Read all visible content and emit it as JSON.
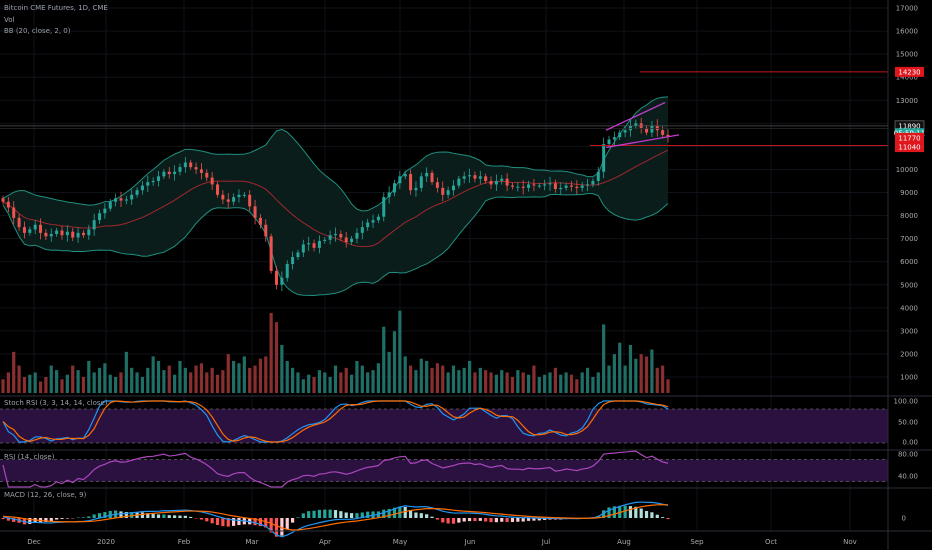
{
  "header": {
    "title": "Bitcoin CME Futures, 1D, CME",
    "volume_label": "Vol",
    "bb_label": "BB (20, close, 2, 0)"
  },
  "panes": {
    "stoch_label": "Stoch RSI (3, 3, 14, 14, close)",
    "rsi_label": "RSI (14, close)",
    "macd_label": "MACD (12, 26, close, 9)"
  },
  "price_axis": {
    "ticks": [
      "17000",
      "16000",
      "15000",
      "14000",
      "13000",
      "12000",
      "11000",
      "10000",
      "9000",
      "8000",
      "7000",
      "6000",
      "5000",
      "4000",
      "3000",
      "2000",
      "1000"
    ],
    "badges": [
      {
        "text": "14230",
        "value": 14230,
        "color": "#e0161d"
      },
      {
        "text": "11890",
        "value": 11890,
        "color": "#111111"
      },
      {
        "text": "05:59:11",
        "value": 11570,
        "color": "#26a69a"
      },
      {
        "text": "11770",
        "value": 11370,
        "color": "#e0161d"
      },
      {
        "text": "11040",
        "value": 10970,
        "color": "#e0161d"
      }
    ]
  },
  "stoch_axis": {
    "ticks": [
      "100.00",
      "50.00",
      "0.00"
    ]
  },
  "rsi_axis": {
    "ticks": [
      "80.00",
      "40.00"
    ]
  },
  "macd_axis": {
    "ticks": [
      "0"
    ]
  },
  "time_axis": {
    "labels": [
      "Dec",
      "2020",
      "Feb",
      "Mar",
      "Apr",
      "May",
      "Jun",
      "Jul",
      "Aug",
      "Sep",
      "Oct",
      "Nov"
    ]
  },
  "colors": {
    "up": "#26a69a",
    "down": "#ef5350",
    "bb": "#1f8f80",
    "bb_fill": "#0b1d1a",
    "basis": "#a0272e",
    "stoch_k": "#2196f3",
    "stoch_d": "#ff6d00",
    "rsi": "#ab47bc",
    "macd": "#2196f3",
    "signal": "#ff6d00",
    "band_fill": "#2a1140",
    "wedge": "#c43ccf",
    "red_line": "#c2161c",
    "axis_text": "#aaaaaa"
  },
  "chart_data": {
    "type": "candlestick",
    "title": "Bitcoin CME Futures, 1D, CME",
    "overlays": [
      "BB (20, close, 2, 0)"
    ],
    "price_range": [
      4000,
      17500
    ],
    "closes": [
      8600,
      8350,
      7900,
      7500,
      7250,
      7400,
      7600,
      7250,
      7100,
      7200,
      7350,
      7150,
      7300,
      7050,
      7250,
      7150,
      7400,
      7800,
      8100,
      8300,
      8600,
      8750,
      8650,
      8700,
      8900,
      9100,
      9300,
      9450,
      9500,
      9700,
      9900,
      9800,
      9900,
      10100,
      10300,
      10100,
      10000,
      9850,
      9650,
      9350,
      8900,
      8700,
      8600,
      8800,
      8900,
      8900,
      8400,
      7900,
      7600,
      7100,
      5600,
      5000,
      5300,
      5900,
      6200,
      6400,
      6750,
      6800,
      6600,
      6900,
      6950,
      7150,
      7200,
      7050,
      6850,
      7000,
      7250,
      7500,
      7700,
      7800,
      7950,
      8800,
      9000,
      9400,
      9700,
      9800,
      9100,
      9200,
      9700,
      9850,
      9450,
      9200,
      8900,
      9100,
      9300,
      9600,
      9700,
      9750,
      9600,
      9700,
      9500,
      9350,
      9500,
      9600,
      9300,
      9250,
      9250,
      9200,
      9350,
      9300,
      9300,
      9350,
      9400,
      9150,
      9200,
      9300,
      9250,
      9200,
      9300,
      9350,
      9500,
      9900,
      11100,
      11300,
      11400,
      11600,
      11700,
      11900,
      12000,
      11800,
      11600,
      11900,
      11700,
      11500,
      11400
    ],
    "volume_range": [
      0,
      4800
    ],
    "volume": [
      600,
      900,
      1800,
      1200,
      700,
      800,
      900,
      500,
      700,
      1200,
      1000,
      600,
      800,
      1200,
      1000,
      700,
      1400,
      900,
      1100,
      1300,
      800,
      700,
      900,
      1800,
      1100,
      900,
      700,
      1100,
      1600,
      1400,
      1000,
      1200,
      800,
      1400,
      1100,
      900,
      1200,
      1300,
      900,
      1100,
      800,
      1000,
      1700,
      1400,
      1300,
      1600,
      1100,
      1200,
      1500,
      1600,
      3500,
      3100,
      2100,
      1400,
      1100,
      900,
      600,
      800,
      700,
      1000,
      900,
      700,
      1200,
      900,
      1100,
      800,
      1400,
      1200,
      900,
      1000,
      1300,
      2900,
      1800,
      2700,
      3600,
      1600,
      1200,
      1000,
      1500,
      1400,
      1100,
      1300,
      1200,
      900,
      1200,
      1000,
      1100,
      1400,
      900,
      1100,
      1000,
      900,
      800,
      1000,
      900,
      700,
      1000,
      900,
      800,
      1200,
      700,
      800,
      900,
      1100,
      800,
      900,
      800,
      600,
      900,
      1100,
      700,
      900,
      3000,
      1200,
      1700,
      2200,
      1200,
      2100,
      1500,
      1700,
      1600,
      1900,
      1100,
      1200,
      600
    ],
    "macd_range": [
      -2,
      1.8
    ],
    "macd": [
      0.1,
      0.0,
      -0.1,
      -0.2,
      -0.35,
      -0.4,
      -0.4,
      -0.42,
      -0.45,
      -0.45,
      -0.4,
      -0.38,
      -0.35,
      -0.36,
      -0.32,
      -0.3,
      -0.25,
      -0.12,
      0.0,
      0.12,
      0.25,
      0.35,
      0.38,
      0.42,
      0.48,
      0.52,
      0.58,
      0.6,
      0.6,
      0.62,
      0.66,
      0.66,
      0.68,
      0.7,
      0.72,
      0.68,
      0.62,
      0.55,
      0.44,
      0.3,
      0.14,
      0.0,
      -0.12,
      -0.18,
      -0.22,
      -0.26,
      -0.33,
      -0.45,
      -0.58,
      -0.75,
      -1.15,
      -1.55,
      -1.7,
      -1.55,
      -1.3,
      -1.05,
      -0.82,
      -0.65,
      -0.55,
      -0.42,
      -0.32,
      -0.22,
      -0.15,
      -0.12,
      -0.12,
      -0.1,
      -0.05,
      0.05,
      0.16,
      0.25,
      0.33,
      0.5,
      0.64,
      0.82,
      1.0,
      1.1,
      1.05,
      1.0,
      1.02,
      1.02,
      0.92,
      0.78,
      0.62,
      0.52,
      0.45,
      0.45,
      0.46,
      0.45,
      0.42,
      0.4,
      0.33,
      0.25,
      0.2,
      0.18,
      0.12,
      0.08,
      0.05,
      0.02,
      0.02,
      0.0,
      -0.02,
      -0.02,
      -0.02,
      -0.05,
      -0.06,
      -0.05,
      -0.05,
      -0.06,
      -0.04,
      -0.02,
      0.02,
      0.12,
      0.45,
      0.7,
      0.88,
      1.05,
      1.2,
      1.32,
      1.42,
      1.45,
      1.42,
      1.42,
      1.35,
      1.25,
      1.15
    ],
    "signal": [
      0.15,
      0.12,
      0.08,
      0.02,
      -0.06,
      -0.13,
      -0.18,
      -0.23,
      -0.27,
      -0.31,
      -0.33,
      -0.34,
      -0.34,
      -0.35,
      -0.34,
      -0.33,
      -0.32,
      -0.28,
      -0.22,
      -0.15,
      -0.07,
      0.01,
      0.08,
      0.15,
      0.21,
      0.27,
      0.33,
      0.38,
      0.42,
      0.46,
      0.5,
      0.53,
      0.56,
      0.59,
      0.62,
      0.63,
      0.63,
      0.62,
      0.59,
      0.54,
      0.46,
      0.37,
      0.27,
      0.18,
      0.1,
      0.03,
      -0.04,
      -0.12,
      -0.21,
      -0.32,
      -0.49,
      -0.7,
      -0.9,
      -1.03,
      -1.09,
      -1.08,
      -1.03,
      -0.96,
      -0.88,
      -0.79,
      -0.7,
      -0.6,
      -0.51,
      -0.43,
      -0.37,
      -0.32,
      -0.27,
      -0.2,
      -0.13,
      -0.05,
      0.03,
      0.12,
      0.23,
      0.35,
      0.48,
      0.6,
      0.69,
      0.75,
      0.8,
      0.85,
      0.86,
      0.85,
      0.82,
      0.77,
      0.71,
      0.66,
      0.62,
      0.59,
      0.56,
      0.53,
      0.49,
      0.44,
      0.39,
      0.35,
      0.3,
      0.26,
      0.22,
      0.18,
      0.15,
      0.12,
      0.09,
      0.07,
      0.05,
      0.03,
      0.01,
      0.0,
      -0.01,
      -0.02,
      -0.02,
      -0.02,
      -0.01,
      0.02,
      0.1,
      0.22,
      0.35,
      0.5,
      0.64,
      0.78,
      0.91,
      1.02,
      1.1,
      1.16,
      1.2,
      1.21,
      1.2
    ]
  }
}
